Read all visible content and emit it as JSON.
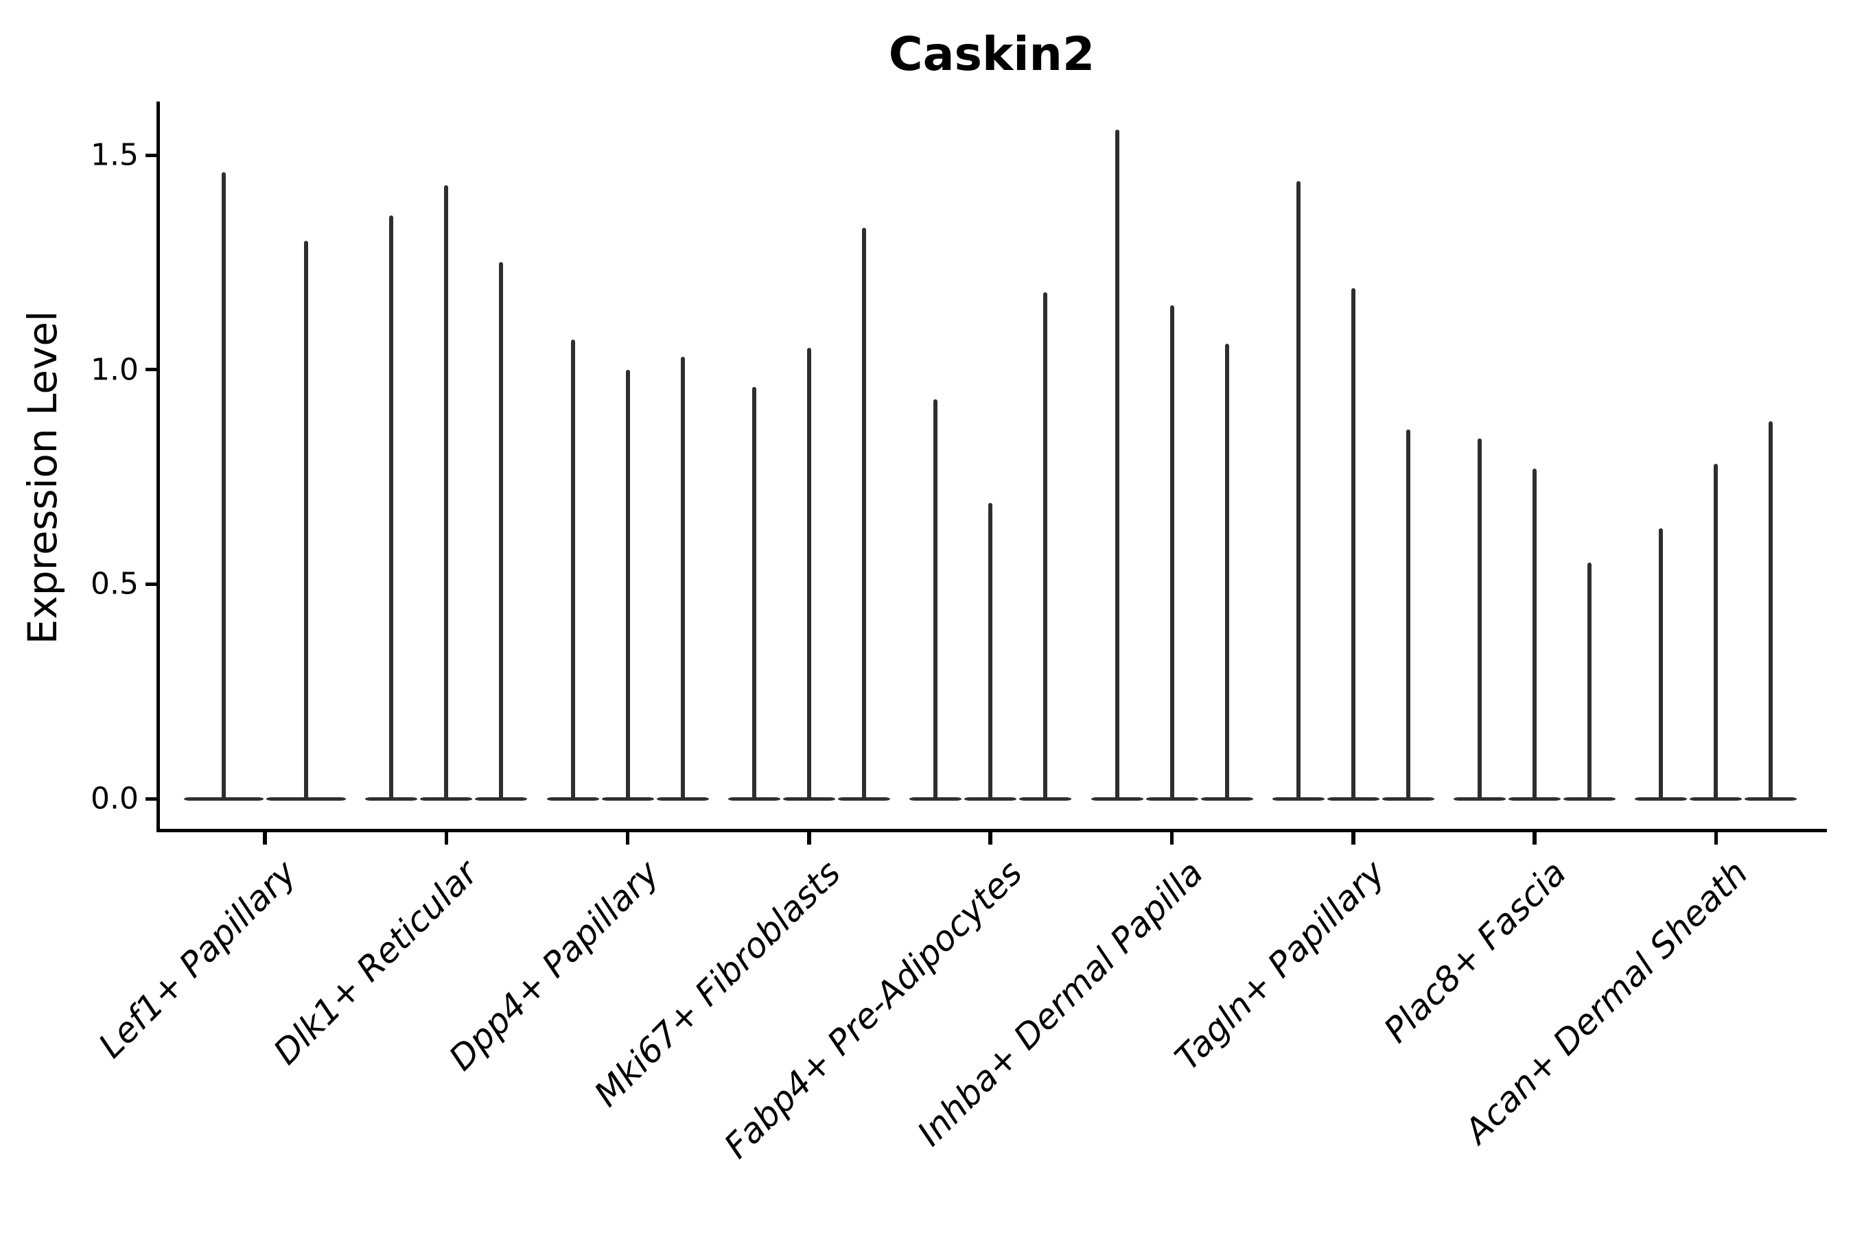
{
  "chart_data": {
    "type": "violin",
    "title": "Caskin2",
    "ylabel": "Expression Level",
    "xlabel": "",
    "yticks": [
      "0.0",
      "0.5",
      "1.0",
      "1.5"
    ],
    "ytick_values": [
      0.0,
      0.5,
      1.0,
      1.5
    ],
    "ylim": [
      -0.08,
      1.62
    ],
    "grid": false,
    "legend": "none",
    "baseline_value": 0.0,
    "categories": [
      "Lef1+ Papillary",
      "Dlk1+ Reticular",
      "Dpp4+ Papillary",
      "Mki67+ Fibroblasts",
      "Fabp4+ Pre-Adipocytes",
      "Inhba+ Dermal Papilla",
      "Tagln+ Papillary",
      "Plac8+ Fascia",
      "Acan+ Dermal Sheath"
    ],
    "groups": [
      {
        "category": "Lef1+ Papillary",
        "violin_maxima": [
          1.46,
          1.3
        ]
      },
      {
        "category": "Dlk1+ Reticular",
        "violin_maxima": [
          1.36,
          1.43,
          1.25
        ]
      },
      {
        "category": "Dpp4+ Papillary",
        "violin_maxima": [
          1.07,
          1.0,
          1.03
        ]
      },
      {
        "category": "Mki67+ Fibroblasts",
        "violin_maxima": [
          0.96,
          1.05,
          1.33
        ]
      },
      {
        "category": "Fabp4+ Pre-Adipocytes",
        "violin_maxima": [
          0.93,
          0.69,
          1.18
        ]
      },
      {
        "category": "Inhba+ Dermal Papilla",
        "violin_maxima": [
          1.56,
          1.15,
          1.06
        ]
      },
      {
        "category": "Tagln+ Papillary",
        "violin_maxima": [
          1.44,
          1.19,
          0.86
        ]
      },
      {
        "category": "Plac8+ Fascia",
        "violin_maxima": [
          0.84,
          0.77,
          0.55
        ]
      },
      {
        "category": "Acan+ Dermal Sheath",
        "violin_maxima": [
          0.63,
          0.78,
          0.88
        ]
      }
    ],
    "colors": {
      "violin": "#2e2e2e",
      "violin_base": "#2f2f2f",
      "axis": "#000000",
      "text": "#000000",
      "background": "#ffffff"
    }
  }
}
